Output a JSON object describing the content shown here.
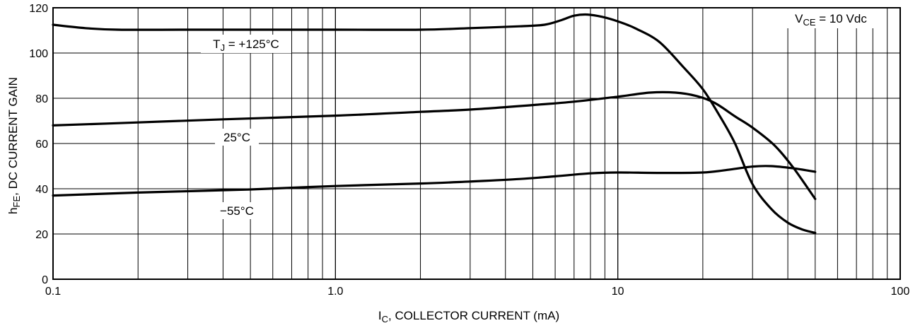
{
  "chart_data": {
    "type": "line",
    "xscale": "log",
    "xlim": [
      0.1,
      100
    ],
    "ylim": [
      0,
      120
    ],
    "grid": true,
    "xlabel": {
      "main": "I",
      "sub": "C",
      "rest": ", COLLECTOR CURRENT (mA)"
    },
    "ylabel": {
      "main": "h",
      "sub": "FE",
      "rest": ", DC CURRENT GAIN"
    },
    "x_ticks": [
      {
        "value": 0.1,
        "label": "0.1"
      },
      {
        "value": 1,
        "label": "1.0"
      },
      {
        "value": 10,
        "label": "10"
      },
      {
        "value": 100,
        "label": "100"
      }
    ],
    "y_ticks": [
      {
        "value": 0,
        "label": "0"
      },
      {
        "value": 20,
        "label": "20"
      },
      {
        "value": 40,
        "label": "40"
      },
      {
        "value": 60,
        "label": "60"
      },
      {
        "value": 80,
        "label": "80"
      },
      {
        "value": 100,
        "label": "100"
      },
      {
        "value": 120,
        "label": "120"
      }
    ],
    "condition": {
      "main": "V",
      "sub": "CE",
      "rest": " = 10 Vdc"
    },
    "series": [
      {
        "name": "T_J = +125°C",
        "label": {
          "main": "T",
          "sub": "J",
          "rest": " = +125°C"
        },
        "points": [
          [
            0.1,
            112.5
          ],
          [
            0.13,
            111.0
          ],
          [
            0.17,
            110.3
          ],
          [
            0.3,
            110.3
          ],
          [
            1.0,
            110.3
          ],
          [
            2.0,
            110.3
          ],
          [
            3.0,
            111.0
          ],
          [
            4.5,
            111.8
          ],
          [
            5.5,
            112.5
          ],
          [
            6.3,
            114.5
          ],
          [
            7.0,
            116.5
          ],
          [
            7.8,
            117.0
          ],
          [
            8.8,
            116.0
          ],
          [
            10.0,
            114.0
          ],
          [
            11.5,
            111.0
          ],
          [
            14.0,
            105.0
          ],
          [
            17.0,
            94.0
          ],
          [
            20.0,
            84.0
          ],
          [
            23.0,
            72.0
          ],
          [
            26.0,
            60.0
          ],
          [
            30.0,
            42.0
          ],
          [
            35.0,
            31.0
          ],
          [
            40.0,
            25.0
          ],
          [
            45.0,
            22.0
          ],
          [
            50.0,
            20.5
          ]
        ]
      },
      {
        "name": "25°C",
        "label": {
          "main": "25°C"
        },
        "points": [
          [
            0.1,
            68.0
          ],
          [
            0.2,
            69.3
          ],
          [
            0.4,
            70.7
          ],
          [
            1.0,
            72.3
          ],
          [
            2.0,
            74.0
          ],
          [
            3.0,
            75.0
          ],
          [
            5.0,
            77.0
          ],
          [
            7.0,
            78.5
          ],
          [
            10.0,
            80.7
          ],
          [
            13.0,
            82.5
          ],
          [
            16.0,
            82.5
          ],
          [
            19.0,
            81.0
          ],
          [
            22.0,
            78.0
          ],
          [
            26.0,
            72.0
          ],
          [
            30.0,
            67.0
          ],
          [
            36.0,
            59.0
          ],
          [
            42.0,
            49.0
          ],
          [
            50.0,
            35.5
          ]
        ]
      },
      {
        "name": "−55°C",
        "label": {
          "main": "−55°C"
        },
        "points": [
          [
            0.1,
            37.0
          ],
          [
            0.2,
            38.3
          ],
          [
            0.5,
            39.7
          ],
          [
            1.0,
            41.2
          ],
          [
            2.0,
            42.3
          ],
          [
            3.0,
            43.2
          ],
          [
            4.5,
            44.3
          ],
          [
            6.0,
            45.5
          ],
          [
            8.0,
            46.8
          ],
          [
            10.0,
            47.2
          ],
          [
            14.0,
            47.0
          ],
          [
            20.0,
            47.2
          ],
          [
            25.0,
            48.5
          ],
          [
            30.0,
            49.8
          ],
          [
            35.0,
            50.0
          ],
          [
            42.0,
            49.0
          ],
          [
            50.0,
            47.5
          ]
        ]
      }
    ]
  }
}
